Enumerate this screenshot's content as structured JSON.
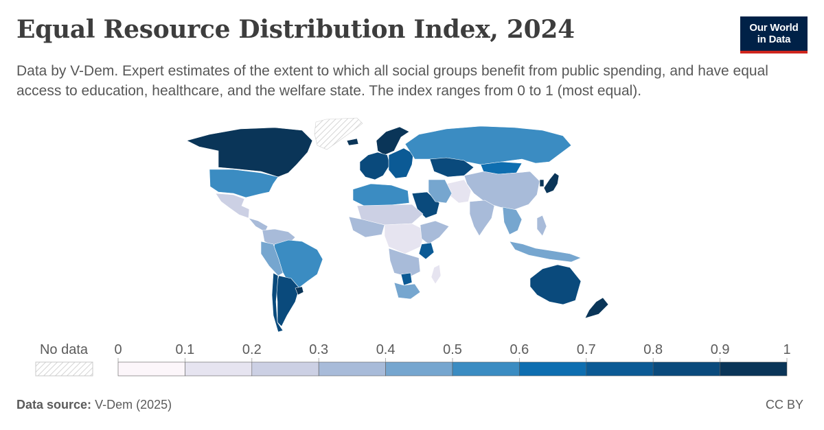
{
  "header": {
    "title": "Equal Resource Distribution Index, 2024",
    "subtitle": "Data by V-Dem. Expert estimates of the extent to which all social groups benefit from public spending, and have equal access to education, healthcare, and the welfare state. The index ranges from 0 to 1 (most equal).",
    "logo_line1": "Our World",
    "logo_line2": "in Data"
  },
  "legend": {
    "no_data_label": "No data",
    "ticks": [
      "0",
      "0.1",
      "0.2",
      "0.3",
      "0.4",
      "0.5",
      "0.6",
      "0.7",
      "0.8",
      "0.9",
      "1"
    ],
    "bin_colors": [
      "#fcf6fa",
      "#e6e4f0",
      "#ccd0e4",
      "#a8bbd9",
      "#76a6cf",
      "#3b8cc2",
      "#0e6eb0",
      "#0b5a95",
      "#0a4a7c",
      "#0a3558"
    ]
  },
  "footer": {
    "source_label": "Data source:",
    "source_value": "V-Dem (2025)",
    "license": "CC BY"
  },
  "chart_data": {
    "type": "choropleth",
    "projection": "world",
    "value_range": [
      0,
      1
    ],
    "year": 2024,
    "regions": [
      {
        "region": "Canada",
        "value": 0.9
      },
      {
        "region": "United States",
        "value": 0.55
      },
      {
        "region": "Mexico",
        "value": 0.25
      },
      {
        "region": "Central America",
        "value": 0.3
      },
      {
        "region": "Colombia / Venezuela",
        "value": 0.35
      },
      {
        "region": "Brazil",
        "value": 0.55
      },
      {
        "region": "Peru / Bolivia",
        "value": 0.45
      },
      {
        "region": "Argentina",
        "value": 0.8
      },
      {
        "region": "Chile",
        "value": 0.8
      },
      {
        "region": "Uruguay",
        "value": 0.9
      },
      {
        "region": "Iceland / Scandinavia",
        "value": 0.9
      },
      {
        "region": "Western Europe",
        "value": 0.85
      },
      {
        "region": "Eastern Europe",
        "value": 0.75
      },
      {
        "region": "Russia",
        "value": 0.55
      },
      {
        "region": "Kazakhstan",
        "value": 0.8
      },
      {
        "region": "Mongolia",
        "value": 0.6
      },
      {
        "region": "China",
        "value": 0.35
      },
      {
        "region": "Japan",
        "value": 0.9
      },
      {
        "region": "South Korea",
        "value": 0.9
      },
      {
        "region": "India",
        "value": 0.35
      },
      {
        "region": "Pakistan / Afghanistan",
        "value": 0.15
      },
      {
        "region": "Saudi Arabia",
        "value": 0.8
      },
      {
        "region": "Iran",
        "value": 0.45
      },
      {
        "region": "Southeast Asia",
        "value": 0.45
      },
      {
        "region": "Indonesia",
        "value": 0.45
      },
      {
        "region": "Philippines",
        "value": 0.3
      },
      {
        "region": "Australia",
        "value": 0.85
      },
      {
        "region": "New Zealand",
        "value": 0.9
      },
      {
        "region": "North Africa",
        "value": 0.55
      },
      {
        "region": "Sahel",
        "value": 0.2
      },
      {
        "region": "West Africa",
        "value": 0.3
      },
      {
        "region": "Central Africa",
        "value": 0.15
      },
      {
        "region": "East Africa",
        "value": 0.3
      },
      {
        "region": "Tanzania",
        "value": 0.75
      },
      {
        "region": "Southern Africa",
        "value": 0.3
      },
      {
        "region": "Botswana",
        "value": 0.75
      },
      {
        "region": "South Africa",
        "value": 0.45
      },
      {
        "region": "Madagascar",
        "value": 0.15
      },
      {
        "region": "Greenland",
        "value": null
      }
    ]
  }
}
